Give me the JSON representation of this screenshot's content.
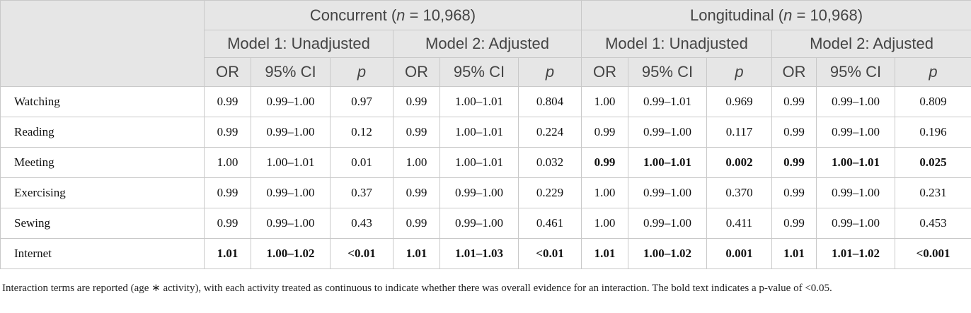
{
  "header": {
    "groups": [
      {
        "label": "Concurrent (",
        "n_symbol": "n",
        "rest": " = 10,968)"
      },
      {
        "label": "Longitudinal (",
        "n_symbol": "n",
        "rest": " = 10,968)"
      }
    ],
    "models": [
      "Model 1: Unadjusted",
      "Model 2: Adjusted",
      "Model 1: Unadjusted",
      "Model 2: Adjusted"
    ],
    "stats": [
      "OR",
      "95% CI",
      "p"
    ]
  },
  "rows": [
    {
      "label": "Watching",
      "cells": [
        "0.99",
        "0.99–1.00",
        "0.97",
        "0.99",
        "1.00–1.01",
        "0.804",
        "1.00",
        "0.99–1.01",
        "0.969",
        "0.99",
        "0.99–1.00",
        "0.809"
      ]
    },
    {
      "label": "Reading",
      "cells": [
        "0.99",
        "0.99–1.00",
        "0.12",
        "0.99",
        "1.00–1.01",
        "0.224",
        "0.99",
        "0.99–1.00",
        "0.117",
        "0.99",
        "0.99–1.00",
        "0.196"
      ]
    },
    {
      "label": "Meeting",
      "cells": [
        "1.00",
        "1.00–1.01",
        "0.01",
        "1.00",
        "1.00–1.01",
        "0.032",
        "0.99",
        "1.00–1.01",
        "0.002",
        "0.99",
        "1.00–1.01",
        "0.025"
      ]
    },
    {
      "label": "Exercising",
      "cells": [
        "0.99",
        "0.99–1.00",
        "0.37",
        "0.99",
        "0.99–1.00",
        "0.229",
        "1.00",
        "0.99–1.00",
        "0.370",
        "0.99",
        "0.99–1.00",
        "0.231"
      ]
    },
    {
      "label": "Sewing",
      "cells": [
        "0.99",
        "0.99–1.00",
        "0.43",
        "0.99",
        "0.99–1.00",
        "0.461",
        "1.00",
        "0.99–1.00",
        "0.411",
        "0.99",
        "0.99–1.00",
        "0.453"
      ]
    },
    {
      "label": "Internet",
      "cells": [
        "1.01",
        "1.00–1.02",
        "<0.01",
        "1.01",
        "1.01–1.03",
        "<0.01",
        "1.01",
        "1.00–1.02",
        "0.001",
        "1.01",
        "1.01–1.02",
        "<0.001"
      ]
    }
  ],
  "footnote": "Interaction terms are reported (age ∗ activity), with each activity treated as continuous to indicate whether there was overall evidence for an interaction. The bold text indicates a p-value of <0.05."
}
